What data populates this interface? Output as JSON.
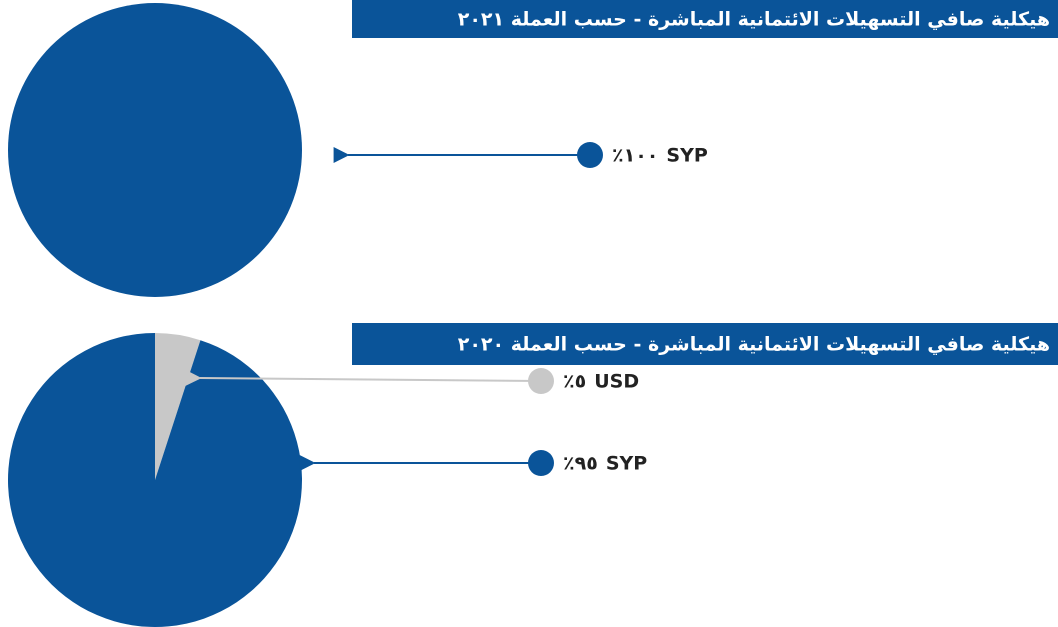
{
  "chart_data": [
    {
      "type": "pie",
      "title": "هيكلية صافي التسهيلات الائتمانية المباشرة - حسب العملة ٢٠٢١",
      "categories": [
        "SYP"
      ],
      "values": [
        100
      ],
      "value_labels": [
        "٪١٠٠"
      ],
      "colors": [
        "#0a5499"
      ]
    },
    {
      "type": "pie",
      "title": "هيكلية صافي التسهيلات الائتمانية المباشرة - حسب العملة ٢٠٢٠",
      "categories": [
        "USD",
        "SYP"
      ],
      "values": [
        5,
        95
      ],
      "value_labels": [
        "٪٥",
        "٪٩٥"
      ],
      "colors": [
        "#c8c8c8",
        "#0a5499"
      ]
    }
  ]
}
